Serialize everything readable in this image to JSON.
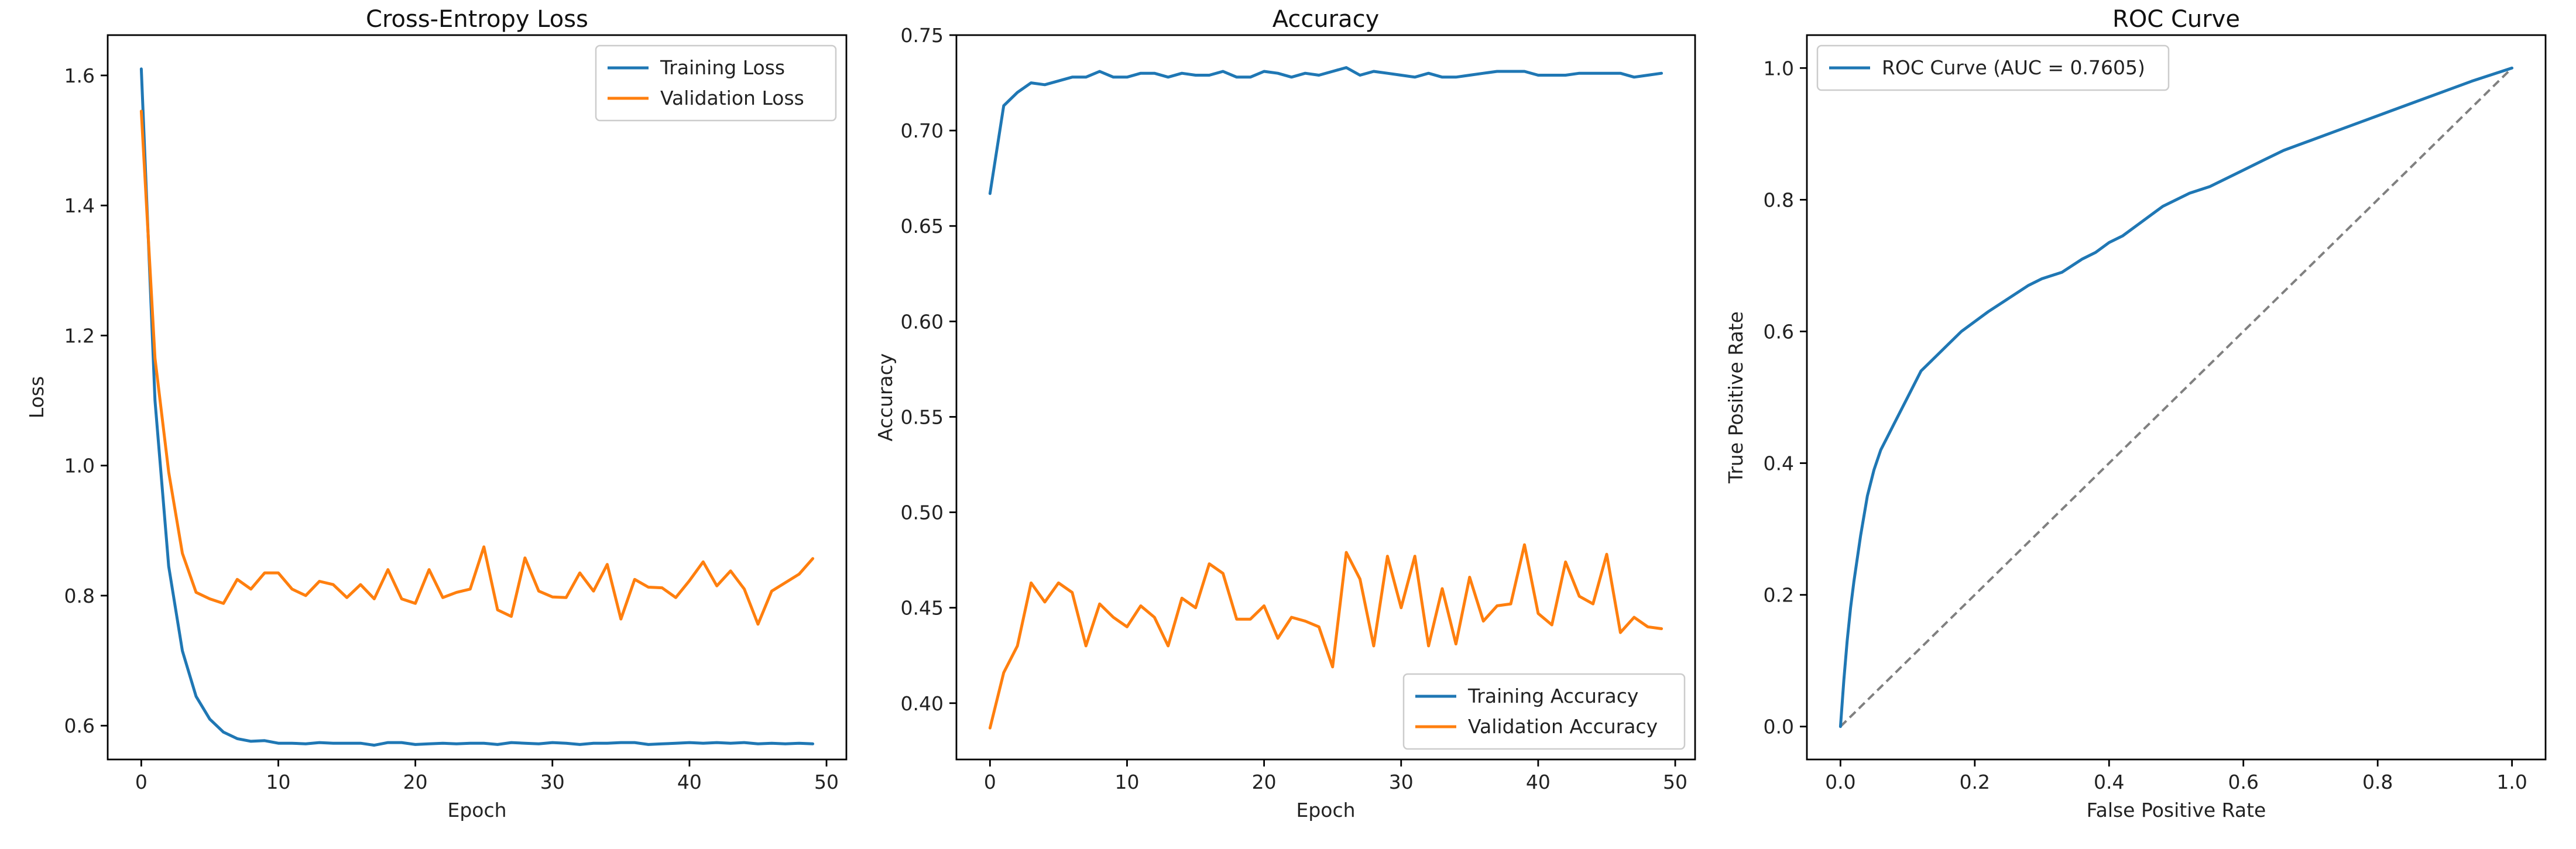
{
  "colors": {
    "blue": "#1f77b4",
    "orange": "#ff7f0e",
    "diagonal": "#808080"
  },
  "chart_data": [
    {
      "type": "line",
      "title": "Cross-Entropy Loss",
      "xlabel": "Epoch",
      "ylabel": "Loss",
      "xlim": [
        -2.45,
        51.45
      ],
      "ylim": [
        0.548,
        1.662
      ],
      "xticks": [
        0,
        10,
        20,
        30,
        40,
        50
      ],
      "xtick_labels": [
        "0",
        "10",
        "20",
        "30",
        "40",
        "50"
      ],
      "yticks": [
        0.6,
        0.8,
        1.0,
        1.2,
        1.4,
        1.6
      ],
      "ytick_labels": [
        "0.6",
        "0.8",
        "1.0",
        "1.2",
        "1.4",
        "1.6"
      ],
      "grid": false,
      "legend_position": "top-right",
      "series": [
        {
          "name": "Training Loss",
          "color": "#1f77b4",
          "x": [
            0,
            1,
            2,
            3,
            4,
            5,
            6,
            7,
            8,
            9,
            10,
            11,
            12,
            13,
            14,
            15,
            16,
            17,
            18,
            19,
            20,
            21,
            22,
            23,
            24,
            25,
            26,
            27,
            28,
            29,
            30,
            31,
            32,
            33,
            34,
            35,
            36,
            37,
            38,
            39,
            40,
            41,
            42,
            43,
            44,
            45,
            46,
            47,
            48,
            49
          ],
          "y": [
            1.61,
            1.1,
            0.845,
            0.715,
            0.645,
            0.61,
            0.59,
            0.58,
            0.576,
            0.577,
            0.573,
            0.573,
            0.572,
            0.574,
            0.573,
            0.573,
            0.573,
            0.57,
            0.574,
            0.574,
            0.571,
            0.572,
            0.573,
            0.572,
            0.573,
            0.573,
            0.571,
            0.574,
            0.573,
            0.572,
            0.574,
            0.573,
            0.571,
            0.573,
            0.573,
            0.574,
            0.574,
            0.571,
            0.572,
            0.573,
            0.574,
            0.573,
            0.574,
            0.573,
            0.574,
            0.572,
            0.573,
            0.572,
            0.573,
            0.572
          ]
        },
        {
          "name": "Validation Loss",
          "color": "#ff7f0e",
          "x": [
            0,
            1,
            2,
            3,
            4,
            5,
            6,
            7,
            8,
            9,
            10,
            11,
            12,
            13,
            14,
            15,
            16,
            17,
            18,
            19,
            20,
            21,
            22,
            23,
            24,
            25,
            26,
            27,
            28,
            29,
            30,
            31,
            32,
            33,
            34,
            35,
            36,
            37,
            38,
            39,
            40,
            41,
            42,
            43,
            44,
            45,
            46,
            47,
            48,
            49
          ],
          "y": [
            1.545,
            1.165,
            0.99,
            0.865,
            0.805,
            0.795,
            0.788,
            0.825,
            0.81,
            0.835,
            0.835,
            0.81,
            0.8,
            0.822,
            0.817,
            0.797,
            0.817,
            0.795,
            0.84,
            0.795,
            0.788,
            0.84,
            0.797,
            0.805,
            0.81,
            0.875,
            0.778,
            0.768,
            0.858,
            0.807,
            0.798,
            0.797,
            0.835,
            0.807,
            0.848,
            0.764,
            0.825,
            0.813,
            0.812,
            0.797,
            0.823,
            0.852,
            0.815,
            0.838,
            0.81,
            0.756,
            0.807,
            0.82,
            0.833,
            0.857
          ]
        }
      ]
    },
    {
      "type": "line",
      "title": "Accuracy",
      "xlabel": "Epoch",
      "ylabel": "Accuracy",
      "xlim": [
        -2.45,
        51.45
      ],
      "ylim": [
        0.3705,
        0.75
      ],
      "xticks": [
        0,
        10,
        20,
        30,
        40,
        50
      ],
      "xtick_labels": [
        "0",
        "10",
        "20",
        "30",
        "40",
        "50"
      ],
      "yticks": [
        0.4,
        0.45,
        0.5,
        0.55,
        0.6,
        0.65,
        0.7,
        0.75
      ],
      "ytick_labels": [
        "0.40",
        "0.45",
        "0.50",
        "0.55",
        "0.60",
        "0.65",
        "0.70",
        "0.75"
      ],
      "grid": false,
      "legend_position": "bottom-right",
      "series": [
        {
          "name": "Training Accuracy",
          "color": "#1f77b4",
          "x": [
            0,
            1,
            2,
            3,
            4,
            5,
            6,
            7,
            8,
            9,
            10,
            11,
            12,
            13,
            14,
            15,
            16,
            17,
            18,
            19,
            20,
            21,
            22,
            23,
            24,
            25,
            26,
            27,
            28,
            29,
            30,
            31,
            32,
            33,
            34,
            35,
            36,
            37,
            38,
            39,
            40,
            41,
            42,
            43,
            44,
            45,
            46,
            47,
            48,
            49
          ],
          "y": [
            0.667,
            0.713,
            0.72,
            0.725,
            0.724,
            0.726,
            0.728,
            0.728,
            0.731,
            0.728,
            0.728,
            0.73,
            0.73,
            0.728,
            0.73,
            0.729,
            0.729,
            0.731,
            0.728,
            0.728,
            0.731,
            0.73,
            0.728,
            0.73,
            0.729,
            0.731,
            0.733,
            0.729,
            0.731,
            0.73,
            0.729,
            0.728,
            0.73,
            0.728,
            0.728,
            0.729,
            0.73,
            0.731,
            0.731,
            0.731,
            0.729,
            0.729,
            0.729,
            0.73,
            0.73,
            0.73,
            0.73,
            0.728,
            0.729,
            0.73
          ]
        },
        {
          "name": "Validation Accuracy",
          "color": "#ff7f0e",
          "x": [
            0,
            1,
            2,
            3,
            4,
            5,
            6,
            7,
            8,
            9,
            10,
            11,
            12,
            13,
            14,
            15,
            16,
            17,
            18,
            19,
            20,
            21,
            22,
            23,
            24,
            25,
            26,
            27,
            28,
            29,
            30,
            31,
            32,
            33,
            34,
            35,
            36,
            37,
            38,
            39,
            40,
            41,
            42,
            43,
            44,
            45,
            46,
            47,
            48,
            49
          ],
          "y": [
            0.387,
            0.416,
            0.43,
            0.463,
            0.453,
            0.463,
            0.458,
            0.43,
            0.452,
            0.445,
            0.44,
            0.451,
            0.445,
            0.43,
            0.455,
            0.45,
            0.473,
            0.468,
            0.444,
            0.444,
            0.451,
            0.434,
            0.445,
            0.443,
            0.44,
            0.419,
            0.479,
            0.465,
            0.43,
            0.477,
            0.45,
            0.477,
            0.43,
            0.46,
            0.431,
            0.466,
            0.443,
            0.451,
            0.452,
            0.483,
            0.447,
            0.441,
            0.474,
            0.456,
            0.452,
            0.478,
            0.437,
            0.445,
            0.44,
            0.439
          ]
        }
      ]
    },
    {
      "type": "line",
      "title": "ROC Curve",
      "xlabel": "False Positive Rate",
      "ylabel": "True Positive Rate",
      "xlim": [
        -0.05,
        1.05
      ],
      "ylim": [
        -0.05,
        1.05
      ],
      "xticks": [
        0.0,
        0.2,
        0.4,
        0.6,
        0.8,
        1.0
      ],
      "xtick_labels": [
        "0.0",
        "0.2",
        "0.4",
        "0.6",
        "0.8",
        "1.0"
      ],
      "yticks": [
        0.0,
        0.2,
        0.4,
        0.6,
        0.8,
        1.0
      ],
      "ytick_labels": [
        "0.0",
        "0.2",
        "0.4",
        "0.6",
        "0.8",
        "1.0"
      ],
      "grid": false,
      "legend_position": "top-left",
      "series": [
        {
          "name": "ROC Curve (AUC = 0.7605)",
          "color": "#1f77b4",
          "x": [
            0.0,
            0.005,
            0.01,
            0.015,
            0.02,
            0.03,
            0.04,
            0.05,
            0.06,
            0.07,
            0.08,
            0.1,
            0.12,
            0.14,
            0.16,
            0.18,
            0.2,
            0.22,
            0.25,
            0.28,
            0.3,
            0.33,
            0.36,
            0.38,
            0.4,
            0.42,
            0.44,
            0.46,
            0.48,
            0.5,
            0.52,
            0.55,
            0.58,
            0.6,
            0.63,
            0.66,
            0.7,
            0.74,
            0.78,
            0.82,
            0.86,
            0.9,
            0.94,
            0.97,
            1.0
          ],
          "y": [
            0.0,
            0.07,
            0.13,
            0.18,
            0.22,
            0.29,
            0.35,
            0.39,
            0.42,
            0.44,
            0.46,
            0.5,
            0.54,
            0.56,
            0.58,
            0.6,
            0.615,
            0.63,
            0.65,
            0.67,
            0.68,
            0.69,
            0.71,
            0.72,
            0.735,
            0.745,
            0.76,
            0.775,
            0.79,
            0.8,
            0.81,
            0.82,
            0.835,
            0.845,
            0.86,
            0.875,
            0.89,
            0.905,
            0.92,
            0.935,
            0.95,
            0.965,
            0.98,
            0.99,
            1.0
          ]
        }
      ],
      "reference_line": {
        "x": [
          0,
          1
        ],
        "y": [
          0,
          1
        ],
        "style": "dashed",
        "color": "#808080"
      }
    }
  ]
}
